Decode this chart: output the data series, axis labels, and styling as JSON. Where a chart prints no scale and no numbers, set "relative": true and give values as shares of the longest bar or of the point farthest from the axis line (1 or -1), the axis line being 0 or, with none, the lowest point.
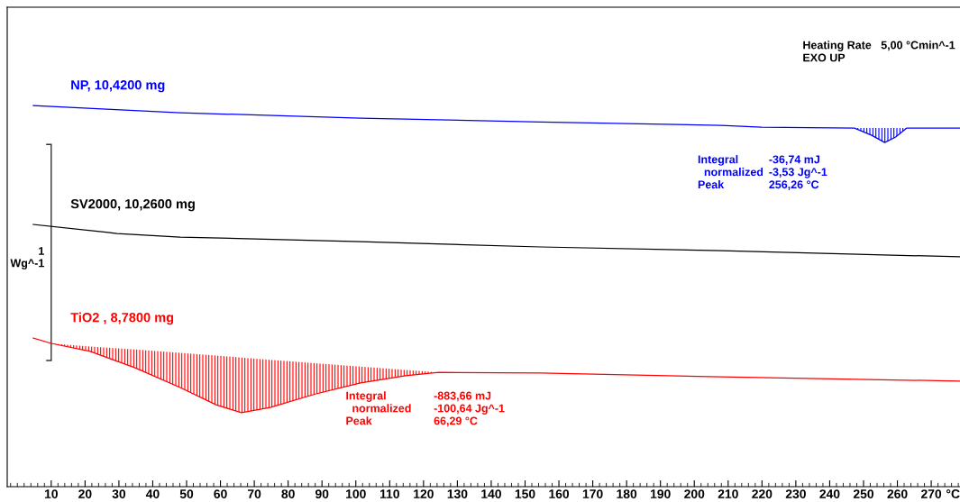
{
  "chart_data": {
    "type": "line",
    "relative": true,
    "xlabel": "°C",
    "ylabel": "1\nWg^-1",
    "xlim": [
      -3,
      278.5
    ],
    "xticks": [
      10,
      20,
      30,
      40,
      50,
      60,
      70,
      80,
      90,
      100,
      110,
      120,
      130,
      140,
      150,
      160,
      170,
      180,
      190,
      200,
      210,
      220,
      230,
      240,
      250,
      260,
      270
    ],
    "grid": false,
    "legend": false,
    "annotations": [
      "Heating Rate   5,00 °Cmin^-1\nEXO UP",
      "Integral\n  normalized\nPeak",
      "-36,74 mJ\n-3,53 Jg^-1\n256,26 °C",
      "Integral\n  normalized\nPeak",
      "-883,66 mJ\n-100,64 Jg^-1\n66,29 °C"
    ],
    "series": [
      {
        "name": "NP, 10,4200 mg",
        "color": "#0000ff",
        "x": [
          4.7,
          48.1,
          101.4,
          154.6,
          207.9,
          219.9,
          247.3,
          252.4,
          256.26,
          259.4,
          262.8,
          278.5
        ],
        "values": [
          1.0,
          0.981,
          0.967,
          0.957,
          0.948,
          0.943,
          0.941,
          0.922,
          0.903,
          0.917,
          0.941,
          0.941
        ],
        "lower": [
          null,
          null,
          null,
          null,
          null,
          null,
          0.941,
          0.922,
          0.903,
          0.917,
          0.941,
          null
        ],
        "upper": [
          null,
          null,
          null,
          null,
          null,
          null,
          0.941,
          0.941,
          0.941,
          0.941,
          0.941,
          null
        ]
      },
      {
        "name": "SV2000, 10,2600 mg",
        "color": "#000000",
        "x": [
          4.7,
          26.8,
          29.4,
          48.1,
          101.4,
          154.6,
          207.9,
          278.5
        ],
        "values": [
          0.688,
          0.667,
          0.664,
          0.655,
          0.643,
          0.629,
          0.619,
          0.603
        ]
      },
      {
        "name": "TiO2 , 8,7800 mg",
        "color": "#ff0000",
        "x": [
          4.7,
          10,
          21.5,
          34.8,
          48.1,
          58.7,
          66.2,
          74.7,
          88.0,
          101.4,
          114.7,
          124.5,
          154.6,
          207.9,
          278.5
        ],
        "values": [
          0.39,
          0.376,
          0.355,
          0.312,
          0.26,
          0.215,
          0.194,
          0.208,
          0.243,
          0.272,
          0.291,
          0.3,
          0.298,
          0.288,
          0.277
        ],
        "lower": [
          null,
          0.376,
          0.355,
          0.312,
          0.26,
          0.215,
          0.194,
          0.208,
          0.243,
          0.272,
          0.291,
          0.3,
          null,
          null,
          null
        ],
        "upper": [
          null,
          0.376,
          0.368,
          0.36,
          0.351,
          0.344,
          0.339,
          0.333,
          0.324,
          0.315,
          0.306,
          0.3,
          null,
          null,
          null
        ]
      }
    ]
  }
}
